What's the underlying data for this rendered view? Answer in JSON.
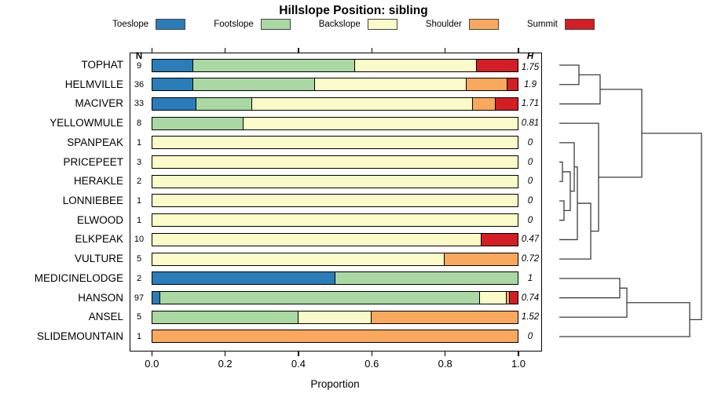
{
  "chart_data": {
    "type": "bar",
    "orientation": "horizontal",
    "stacked": true,
    "title": "Hillslope Position: sibling",
    "xlabel": "Proportion",
    "n_header": "N",
    "h_header": "H",
    "xlim": [
      0,
      1
    ],
    "grid": false,
    "xticks": [
      {
        "label": "0.0",
        "value": 0.0
      },
      {
        "label": "0.2",
        "value": 0.2
      },
      {
        "label": "0.4",
        "value": 0.4
      },
      {
        "label": "0.6",
        "value": 0.6
      },
      {
        "label": "0.8",
        "value": 0.8
      },
      {
        "label": "1.0",
        "value": 1.0
      }
    ],
    "legend_position": "top",
    "legend": [
      {
        "label": "Toeslope",
        "color": "#2B7DB9"
      },
      {
        "label": "Footslope",
        "color": "#A9D8A2"
      },
      {
        "label": "Backslope",
        "color": "#FBFBC9"
      },
      {
        "label": "Shoulder",
        "color": "#F9A85D"
      },
      {
        "label": "Summit",
        "color": "#D21E24"
      }
    ],
    "rows": [
      {
        "name": "TOPHAT",
        "n": "9",
        "h": "1.75",
        "values": [
          0.111,
          0.444,
          0.333,
          0,
          0.111
        ]
      },
      {
        "name": "HELMVILLE",
        "n": "36",
        "h": "1.9",
        "values": [
          0.111,
          0.333,
          0.417,
          0.111,
          0.028
        ]
      },
      {
        "name": "MACIVER",
        "n": "33",
        "h": "1.71",
        "values": [
          0.121,
          0.152,
          0.606,
          0.061,
          0.061
        ]
      },
      {
        "name": "YELLOWMULE",
        "n": "8",
        "h": "0.81",
        "values": [
          0,
          0.25,
          0.75,
          0,
          0
        ]
      },
      {
        "name": "SPANPEAK",
        "n": "1",
        "h": "0",
        "values": [
          0,
          0,
          1,
          0,
          0
        ]
      },
      {
        "name": "PRICEPEET",
        "n": "3",
        "h": "0",
        "values": [
          0,
          0,
          1,
          0,
          0
        ]
      },
      {
        "name": "HERAKLE",
        "n": "2",
        "h": "0",
        "values": [
          0,
          0,
          1,
          0,
          0
        ]
      },
      {
        "name": "LONNIEBEE",
        "n": "1",
        "h": "0",
        "values": [
          0,
          0,
          1,
          0,
          0
        ]
      },
      {
        "name": "ELWOOD",
        "n": "1",
        "h": "0",
        "values": [
          0,
          0,
          1,
          0,
          0
        ]
      },
      {
        "name": "ELKPEAK",
        "n": "10",
        "h": "0.47",
        "values": [
          0,
          0,
          0.9,
          0,
          0.1
        ]
      },
      {
        "name": "VULTURE",
        "n": "5",
        "h": "0.72",
        "values": [
          0,
          0,
          0.8,
          0.2,
          0
        ]
      },
      {
        "name": "MEDICINELODGE",
        "n": "2",
        "h": "1",
        "values": [
          0.5,
          0.5,
          0,
          0,
          0
        ]
      },
      {
        "name": "HANSON",
        "n": "97",
        "h": "0.74",
        "values": [
          0.021,
          0.876,
          0.072,
          0.01,
          0.021
        ]
      },
      {
        "name": "ANSEL",
        "n": "5",
        "h": "1.52",
        "values": [
          0,
          0.4,
          0.2,
          0.4,
          0
        ]
      },
      {
        "name": "SLIDEMOUNTAIN",
        "n": "1",
        "h": "0",
        "values": [
          0,
          0,
          0,
          1,
          0
        ]
      }
    ],
    "dendrogram": {
      "note": "merges reference leaves L0-L14 (row order) or prior merges M#; height 0=leaf side, 1=root",
      "merges": [
        {
          "id": "M0",
          "a": "L5",
          "b": "L6",
          "height": 0.022
        },
        {
          "id": "M1",
          "a": "L7",
          "b": "L8",
          "height": 0.033
        },
        {
          "id": "M2",
          "a": "M0",
          "b": "M1",
          "height": 0.077
        },
        {
          "id": "M3",
          "a": "L4",
          "b": "M2",
          "height": 0.105
        },
        {
          "id": "M4",
          "a": "M3",
          "b": "L9",
          "height": 0.127
        },
        {
          "id": "M5",
          "a": "M4",
          "b": "L10",
          "height": 0.221
        },
        {
          "id": "M6",
          "a": "L3",
          "b": "M5",
          "height": 0.276
        },
        {
          "id": "M7",
          "a": "L0",
          "b": "L1",
          "height": 0.138
        },
        {
          "id": "M8",
          "a": "M7",
          "b": "L2",
          "height": 0.287
        },
        {
          "id": "M9",
          "a": "M8",
          "b": "M6",
          "height": 0.58
        },
        {
          "id": "M10",
          "a": "L11",
          "b": "L12",
          "height": 0.425
        },
        {
          "id": "M11",
          "a": "M10",
          "b": "L13",
          "height": 0.475
        },
        {
          "id": "M12",
          "a": "M11",
          "b": "L14",
          "height": 0.917
        },
        {
          "id": "M13",
          "a": "M9",
          "b": "M12",
          "height": 1.0
        }
      ]
    }
  }
}
